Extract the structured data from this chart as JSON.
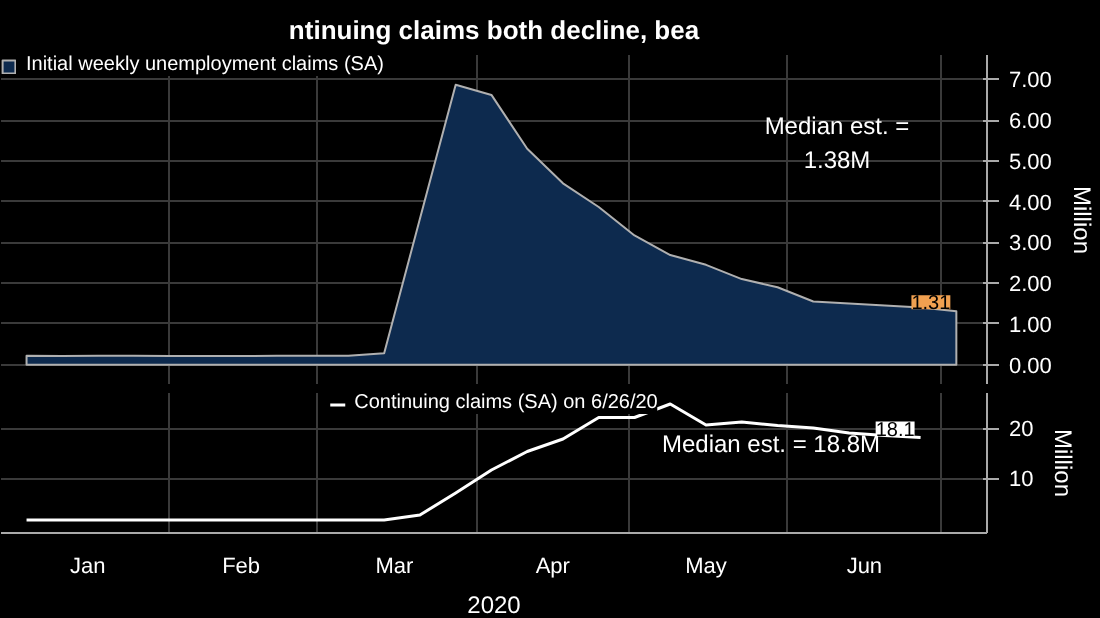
{
  "chart_data": [
    {
      "type": "area",
      "title": "ntinuing claims both decline, bea",
      "ylabel": "Million",
      "legend": "top left",
      "grid": true,
      "tick_labels": "y",
      "x": [
        "2020-01-04",
        "2020-01-11",
        "2020-01-18",
        "2020-01-25",
        "2020-02-01",
        "2020-02-08",
        "2020-02-15",
        "2020-02-22",
        "2020-02-29",
        "2020-03-07",
        "2020-03-14",
        "2020-03-21",
        "2020-03-28",
        "2020-04-04",
        "2020-04-11",
        "2020-04-18",
        "2020-04-25",
        "2020-05-02",
        "2020-05-09",
        "2020-05-16",
        "2020-05-23",
        "2020-05-30",
        "2020-06-06",
        "2020-06-13",
        "2020-06-20",
        "2020-06-27",
        "2020-07-04"
      ],
      "series": [
        {
          "name": "Initial weekly unemployment claims (SA)",
          "color": "#0d2a4e",
          "values": [
            0.22,
            0.21,
            0.22,
            0.22,
            0.21,
            0.21,
            0.21,
            0.22,
            0.22,
            0.22,
            0.28,
            3.58,
            6.87,
            6.62,
            5.3,
            4.45,
            3.87,
            3.17,
            2.69,
            2.45,
            2.1,
            1.9,
            1.55,
            1.5,
            1.45,
            1.4,
            1.31
          ]
        }
      ],
      "xlim": [
        "2019-12-30",
        "2020-07-10"
      ],
      "xticks": [
        {
          "value": "2020-02-01",
          "label": null
        },
        {
          "value": "2020-03-01",
          "label": null
        },
        {
          "value": "2020-04-01",
          "label": null
        },
        {
          "value": "2020-05-01",
          "label": null
        },
        {
          "value": "2020-06-01",
          "label": null
        },
        {
          "value": "2020-07-01",
          "label": null
        }
      ],
      "ylim": [
        -0.5,
        7.6
      ],
      "yticks": [
        {
          "value": 0,
          "label": "0.00"
        },
        {
          "value": 1,
          "label": "1.00"
        },
        {
          "value": 2,
          "label": "2.00"
        },
        {
          "value": 3,
          "label": "3.00"
        },
        {
          "value": 4,
          "label": "4.00"
        },
        {
          "value": 5,
          "label": "5.00"
        },
        {
          "value": 6,
          "label": "6.00"
        },
        {
          "value": 7,
          "label": "7.00"
        }
      ],
      "annotations": [
        "Median est. =\n1.38M",
        {
          "text": "1.31",
          "x": "2020-07-04",
          "y": 1.31
        }
      ]
    },
    {
      "type": "line",
      "xlabel": "2020",
      "ylabel": "Million",
      "legend": "top",
      "grid": true,
      "x": [
        "2020-01-04",
        "2020-01-11",
        "2020-01-18",
        "2020-01-25",
        "2020-02-01",
        "2020-02-08",
        "2020-02-15",
        "2020-02-22",
        "2020-02-29",
        "2020-03-07",
        "2020-03-14",
        "2020-03-21",
        "2020-03-28",
        "2020-04-04",
        "2020-04-11",
        "2020-04-18",
        "2020-04-25",
        "2020-05-02",
        "2020-05-09",
        "2020-05-16",
        "2020-05-23",
        "2020-05-30",
        "2020-06-06",
        "2020-06-13",
        "2020-06-20",
        "2020-06-27"
      ],
      "series": [
        {
          "name": "Continuing claims (SA) on 6/26/20",
          "color": "#ffffff",
          "values": [
            1.6,
            1.6,
            1.6,
            1.6,
            1.6,
            1.6,
            1.6,
            1.6,
            1.6,
            1.6,
            1.6,
            2.6,
            7.0,
            11.6,
            15.3,
            17.8,
            22.1,
            22.1,
            24.8,
            20.6,
            21.2,
            20.5,
            20.0,
            19.0,
            18.5,
            18.1
          ]
        }
      ],
      "xlim": [
        "2019-12-30",
        "2020-07-10"
      ],
      "xticks": [
        {
          "value": "2020-01-16",
          "label": "Jan"
        },
        {
          "value": "2020-02-01",
          "label": null
        },
        {
          "value": "2020-02-15",
          "label": "Feb"
        },
        {
          "value": "2020-03-01",
          "label": null
        },
        {
          "value": "2020-03-16",
          "label": "Mar"
        },
        {
          "value": "2020-04-01",
          "label": null
        },
        {
          "value": "2020-04-16",
          "label": "Apr"
        },
        {
          "value": "2020-05-01",
          "label": null
        },
        {
          "value": "2020-05-16",
          "label": "May"
        },
        {
          "value": "2020-06-01",
          "label": null
        },
        {
          "value": "2020-06-16",
          "label": "Jun"
        },
        {
          "value": "2020-07-01",
          "label": null
        }
      ],
      "ylim": [
        -1,
        27
      ],
      "yticks": [
        10,
        20
      ],
      "annotations": [
        "Median est. = 18.8M",
        {
          "text": "18.1",
          "x": "2020-06-27",
          "y": 18.1
        }
      ]
    }
  ]
}
